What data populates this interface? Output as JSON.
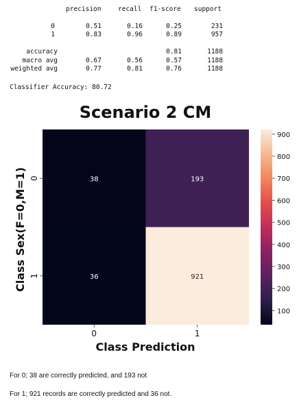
{
  "report": {
    "headers": [
      "precision",
      "recall",
      "f1-score",
      "support"
    ],
    "rows": [
      {
        "label": "0",
        "precision": "0.51",
        "recall": "0.16",
        "f1": "0.25",
        "support": "231"
      },
      {
        "label": "1",
        "precision": "0.83",
        "recall": "0.96",
        "f1": "0.89",
        "support": "957"
      }
    ],
    "accuracy": {
      "label": "accuracy",
      "f1": "0.81",
      "support": "1188"
    },
    "averages": [
      {
        "label": "macro avg",
        "precision": "0.67",
        "recall": "0.56",
        "f1": "0.57",
        "support": "1188"
      },
      {
        "label": "weighted avg",
        "precision": "0.77",
        "recall": "0.81",
        "f1": "0.76",
        "support": "1188"
      }
    ],
    "classifier_accuracy": "Classifier Accuracy: 80.72"
  },
  "chart_data": {
    "type": "heatmap",
    "title": "Scenario 2 CM",
    "xlabel": "Class Prediction",
    "ylabel": "Class Sex(F=0,M=1)",
    "x_tick_labels": [
      "0",
      "1"
    ],
    "y_tick_labels": [
      "0",
      "1"
    ],
    "matrix": [
      [
        38,
        193
      ],
      [
        36,
        921
      ]
    ],
    "colorbar": {
      "ticks": [
        100,
        200,
        300,
        400,
        500,
        600,
        700,
        800,
        900
      ],
      "range": [
        36,
        921
      ],
      "colormap": [
        "#03051a",
        "#2b1f4c",
        "#5a2160",
        "#8c1f63",
        "#c12d5a",
        "#e44d4a",
        "#f3865b",
        "#f6b98d",
        "#faebdd"
      ]
    }
  },
  "captions": [
    "For 0; 38 are correctly predicted, and 193 not",
    "For 1; 921 records are correctly predicted and 36 not."
  ]
}
